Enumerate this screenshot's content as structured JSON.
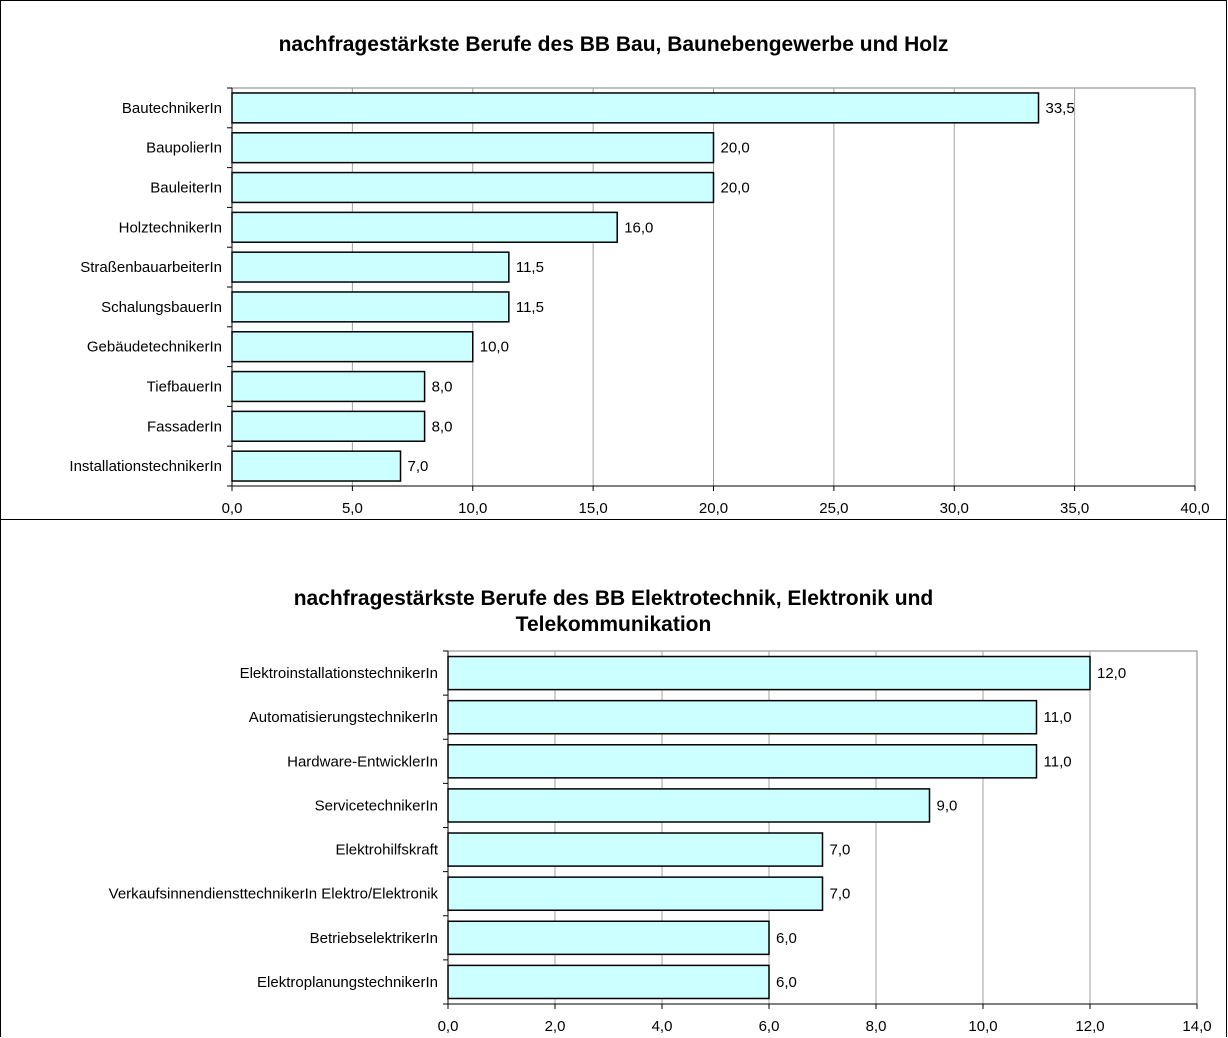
{
  "chart_data": [
    {
      "type": "bar",
      "orientation": "horizontal",
      "title": "nachfragestärkste Berufe des BB Bau, Baunebengewerbe und Holz",
      "categories": [
        "BautechnikerIn",
        "BaupolierIn",
        "BauleiterIn",
        "HolztechnikerIn",
        "StraßenbauarbeiterIn",
        "SchalungsbauerIn",
        "GebäudetechnikerIn",
        "TiefbauerIn",
        "FassaderIn",
        "InstallationstechnikerIn"
      ],
      "values": [
        33.5,
        20.0,
        20.0,
        16.0,
        11.5,
        11.5,
        10.0,
        8.0,
        8.0,
        7.0
      ],
      "value_labels": [
        "33,5",
        "20,0",
        "20,0",
        "16,0",
        "11,5",
        "11,5",
        "10,0",
        "8,0",
        "8,0",
        "7,0"
      ],
      "xlim": [
        0,
        40
      ],
      "xticks": [
        "0,0",
        "5,0",
        "10,0",
        "15,0",
        "20,0",
        "25,0",
        "30,0",
        "35,0",
        "40,0"
      ],
      "grid": true,
      "bar_color": "#ccffff"
    },
    {
      "type": "bar",
      "orientation": "horizontal",
      "title": "nachfragestärkste Berufe des BB Elektrotechnik, Elektronik und Telekommunikation",
      "title_lines": [
        "nachfragestärkste Berufe des BB Elektrotechnik, Elektronik und",
        "Telekommunikation"
      ],
      "categories": [
        "ElektroinstallationstechnikerIn",
        "AutomatisierungstechnikerIn",
        "Hardware-EntwicklerIn",
        "ServicetechnikerIn",
        "Elektrohilfskraft",
        "VerkaufsinnendiensttechnikerIn Elektro/Elektronik",
        "BetriebselektrikerIn",
        "ElektroplanungstechnikerIn"
      ],
      "values": [
        12.0,
        11.0,
        11.0,
        9.0,
        7.0,
        7.0,
        6.0,
        6.0
      ],
      "value_labels": [
        "12,0",
        "11,0",
        "11,0",
        "9,0",
        "7,0",
        "7,0",
        "6,0",
        "6,0"
      ],
      "xlim": [
        0,
        14
      ],
      "xticks": [
        "0,0",
        "2,0",
        "4,0",
        "6,0",
        "8,0",
        "10,0",
        "12,0",
        "14,0"
      ],
      "grid": true,
      "bar_color": "#ccffff"
    }
  ]
}
